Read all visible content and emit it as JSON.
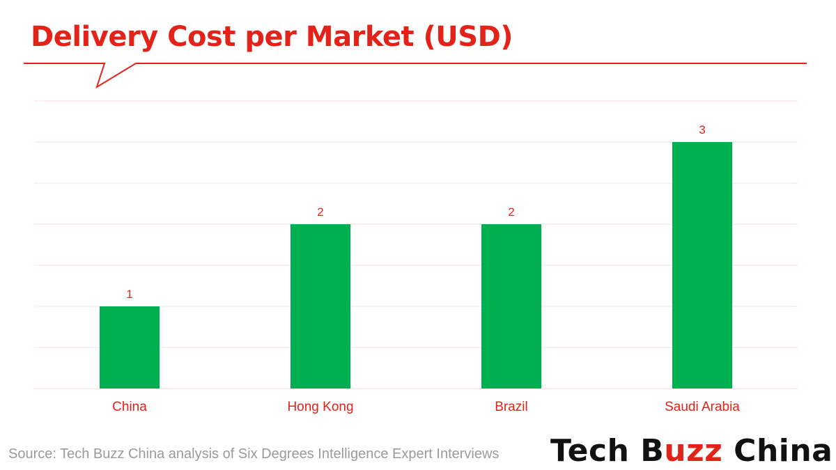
{
  "colors": {
    "title": "#e2231a",
    "bar": "#00b050",
    "labels": "#e2231a",
    "grid": "#f4dcdc",
    "source": "#9a9a9a"
  },
  "title": "Delivery Cost per Market (USD)",
  "source": "Source: Tech Buzz China analysis of Six Degrees Intelligence Expert Interviews",
  "logo": {
    "part1": "Tech B",
    "accent": "uzz",
    "part2": " China"
  },
  "chart_data": {
    "type": "bar",
    "title": "Delivery Cost per Market (USD)",
    "categories": [
      "China",
      "Hong Kong",
      "Brazil",
      "Saudi Arabia"
    ],
    "values": [
      1,
      2,
      2,
      3
    ],
    "data_labels": [
      "1",
      "2",
      "2",
      "3"
    ],
    "xlabel": "",
    "ylabel": "",
    "ylim": [
      0,
      3.5
    ],
    "grid": true,
    "legend": "none"
  }
}
